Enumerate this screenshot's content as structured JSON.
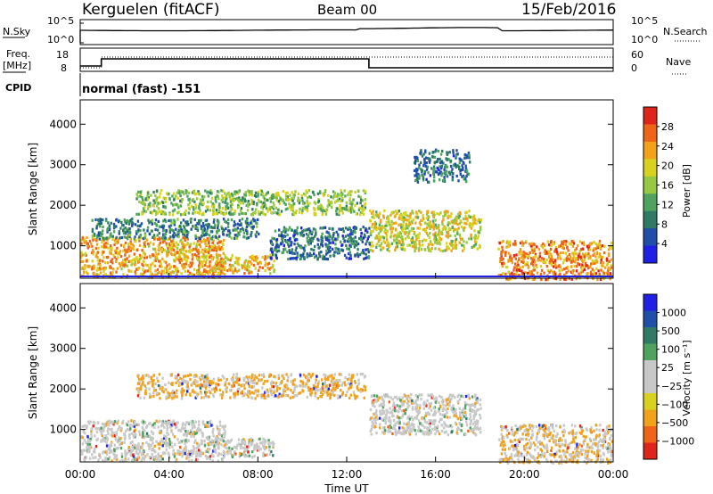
{
  "header": {
    "station": "Kerguelen (fitACF)",
    "beam": "Beam 00",
    "date": "15/Feb/2016"
  },
  "noise_panel": {
    "left_label": "N.Sky",
    "right_label": "N.Search",
    "left_ticks": [
      "10^5",
      "10^0"
    ],
    "right_ticks": [
      "10^5",
      "10^0"
    ]
  },
  "freq_panel": {
    "left_label_1": "Freq.",
    "left_label_2": "[MHz]",
    "right_label": "Nave",
    "left_ticks": [
      "18",
      "8"
    ],
    "right_ticks": [
      "60",
      "0"
    ]
  },
  "cpid": {
    "label": "CPID",
    "value": "normal (fast) -151"
  },
  "colors": {
    "power": [
      "#1f1fe6",
      "#1f4fa8",
      "#2f7a66",
      "#4ea45e",
      "#97c842",
      "#d8d21e",
      "#f0a21a",
      "#ee6418",
      "#e0241a"
    ],
    "velocity": [
      "#e0241a",
      "#ee6418",
      "#f0a21a",
      "#d8d21e",
      "#c8c8c8",
      "#c8c8c8",
      "#4ea45e",
      "#2f7a66",
      "#1f4fa8",
      "#1f1fe6"
    ]
  },
  "chart_data": [
    {
      "type": "heatmap",
      "name": "power",
      "ylabel": "Slant Range [km]",
      "xlim": [
        "00:00",
        "24:00"
      ],
      "ylim": [
        200,
        4600
      ],
      "y_ticks": [
        "4000",
        "3000",
        "2000",
        "1000"
      ],
      "x_ticks": [
        "00:00",
        "04:00",
        "08:00",
        "12:00",
        "16:00",
        "20:00",
        "00:00"
      ],
      "colorbar": {
        "label": "Power [dB]",
        "ticks": [
          "28",
          "24",
          "20",
          "16",
          "12",
          "8",
          "4"
        ],
        "range": [
          0,
          30
        ]
      },
      "echo_regions": [
        {
          "t0": 0.0,
          "t1": 6.5,
          "r0": 250,
          "r1": 1250,
          "value": 22
        },
        {
          "t0": 6.0,
          "t1": 8.7,
          "r0": 350,
          "r1": 800,
          "value": 21
        },
        {
          "t0": 2.5,
          "t1": 12.8,
          "r0": 1800,
          "r1": 2400,
          "value": 14
        },
        {
          "t0": 13.0,
          "t1": 18.0,
          "r0": 900,
          "r1": 1900,
          "value": 18
        },
        {
          "t0": 18.8,
          "t1": 23.9,
          "r0": 200,
          "r1": 1150,
          "value": 24
        },
        {
          "t0": 0.5,
          "t1": 8.0,
          "r0": 1200,
          "r1": 1700,
          "value": 8
        },
        {
          "t0": 8.5,
          "t1": 13.0,
          "r0": 700,
          "r1": 1500,
          "value": 6
        },
        {
          "t0": 15.0,
          "t1": 17.5,
          "r0": 2600,
          "r1": 3400,
          "value": 7
        }
      ]
    },
    {
      "type": "heatmap",
      "name": "velocity",
      "ylabel": "Slant Range [km]",
      "xlabel": "Time UT",
      "xlim": [
        "00:00",
        "24:00"
      ],
      "ylim": [
        200,
        4600
      ],
      "y_ticks": [
        "4000",
        "3000",
        "2000",
        "1000"
      ],
      "x_ticks": [
        "00:00",
        "04:00",
        "08:00",
        "12:00",
        "16:00",
        "20:00",
        "00:00"
      ],
      "colorbar": {
        "label": "Velocity [m s⁻¹]",
        "ticks": [
          "1000",
          "500",
          "100",
          "25",
          "−25",
          "−100",
          "−500",
          "−1000"
        ]
      },
      "echo_regions": [
        {
          "t0": 0.0,
          "t1": 6.5,
          "r0": 250,
          "r1": 1250,
          "value": 0
        },
        {
          "t0": 6.0,
          "t1": 8.7,
          "r0": 350,
          "r1": 800,
          "value": 0
        },
        {
          "t0": 2.5,
          "t1": 12.8,
          "r0": 1800,
          "r1": 2400,
          "value": -30
        },
        {
          "t0": 13.0,
          "t1": 18.0,
          "r0": 900,
          "r1": 1900,
          "value": 0
        },
        {
          "t0": 18.8,
          "t1": 23.9,
          "r0": 200,
          "r1": 1150,
          "value": -20
        }
      ]
    }
  ]
}
